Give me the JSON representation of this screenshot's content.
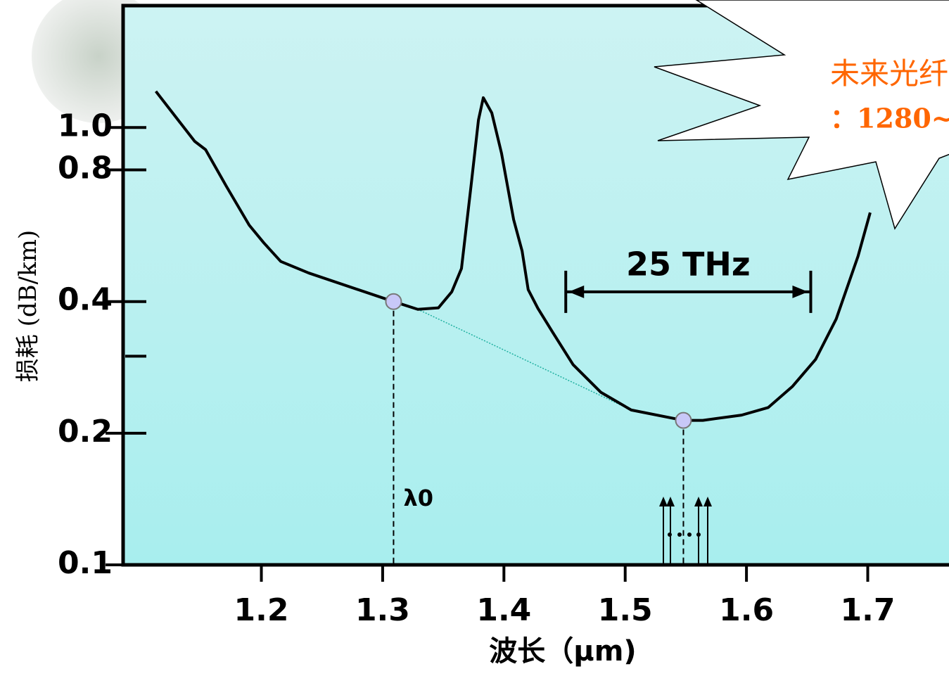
{
  "chart_data": {
    "type": "line",
    "y_label": "损耗 (dB/km)",
    "x_label": "波长（μm)",
    "log_y": true,
    "xlim": [
      1.086,
      1.767
    ],
    "ylim": [
      0.1,
      1.9
    ],
    "xticks": [
      1.2,
      1.3,
      1.4,
      1.5,
      1.6,
      1.7
    ],
    "yticks": [
      0.1,
      0.2,
      0.4,
      0.8,
      {
        "value": 1,
        "label": "1.0"
      }
    ],
    "minor_yticks": [
      0.3
    ],
    "series": [
      {
        "color": "#000000",
        "x": [
          1.113,
          1.145,
          1.154,
          1.171,
          1.19,
          1.202,
          1.216,
          1.239,
          1.309,
          1.329,
          1.346,
          1.357,
          1.365,
          1.373,
          1.379,
          1.383,
          1.39,
          1.398,
          1.408,
          1.415,
          1.42,
          1.428,
          1.44,
          1.457,
          1.48,
          1.505,
          1.548,
          1.564,
          1.596,
          1.618,
          1.638,
          1.657,
          1.674,
          1.692,
          1.702
        ],
        "y": [
          1.21,
          0.93,
          0.89,
          0.735,
          0.598,
          0.545,
          0.494,
          0.465,
          0.4,
          0.384,
          0.387,
          0.421,
          0.476,
          0.74,
          1.04,
          1.17,
          1.08,
          0.874,
          0.616,
          0.522,
          0.426,
          0.386,
          0.341,
          0.287,
          0.248,
          0.226,
          0.214,
          0.214,
          0.22,
          0.229,
          0.256,
          0.295,
          0.365,
          0.508,
          0.639
        ]
      }
    ],
    "points": {
      "color": "#c8c8f8",
      "x": [
        1.309,
        1.548
      ],
      "y": [
        0.4,
        0.214
      ]
    },
    "point_label": "λ0",
    "tangent_line": {
      "color": "#20b0a0",
      "x": [
        1.329,
        1.505
      ],
      "y": [
        0.384,
        0.226
      ]
    },
    "bracket": {
      "label": "25 THz",
      "x": [
        1.451,
        1.653
      ],
      "y": 0.421
    },
    "callout": {
      "color": "#ff6600",
      "lines": [
        "未来光纤",
        "：1280~"
      ]
    }
  }
}
